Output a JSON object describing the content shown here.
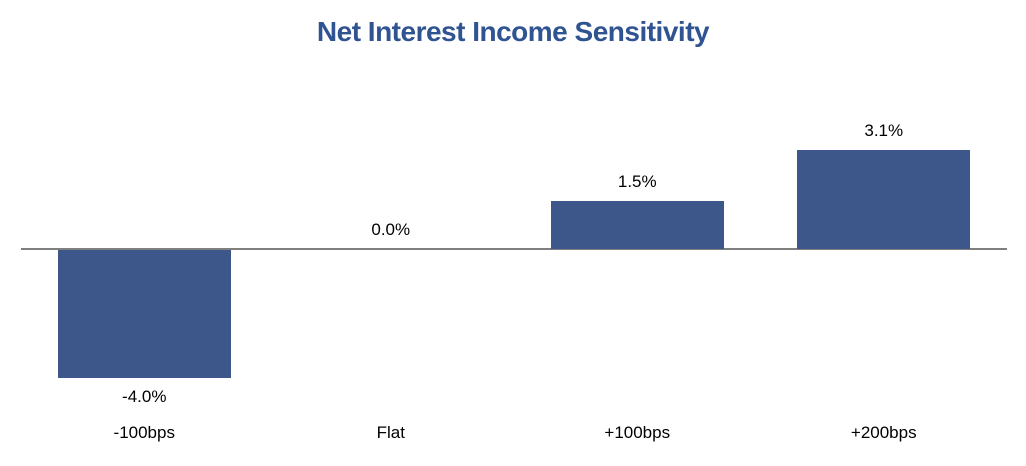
{
  "chart_data": {
    "type": "bar",
    "title": "Net Interest Income Sensitivity",
    "categories": [
      "-100bps",
      "Flat",
      "+100bps",
      "+200bps"
    ],
    "values": [
      -4.0,
      0.0,
      1.5,
      3.1
    ],
    "value_labels": [
      "-4.0%",
      "0.0%",
      "1.5%",
      "3.1%"
    ],
    "xlabel": "",
    "ylabel": "",
    "ylim": [
      -4.5,
      3.6
    ],
    "grid": false,
    "legend": false,
    "data_labels_visible": true,
    "bar_color": "#3E578B",
    "title_color": "#2F5491",
    "axis_color": "#7F7F7F",
    "label_color": "#000000"
  }
}
